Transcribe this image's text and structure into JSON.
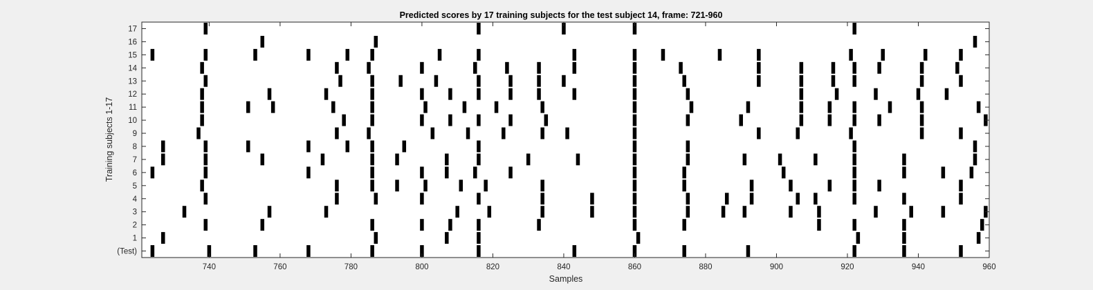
{
  "chart_data": {
    "type": "raster",
    "title": "Predicted scores by 17 training subjects for the test subject 14, frame: 721-960",
    "xlabel": "Samples",
    "ylabel": "Training subjects 1-17",
    "xlim": [
      721,
      960
    ],
    "x_ticks": [
      740,
      760,
      780,
      800,
      820,
      840,
      860,
      880,
      900,
      920,
      940,
      960
    ],
    "y_tick_labels": [
      "(Test)",
      "1",
      "2",
      "3",
      "4",
      "5",
      "6",
      "7",
      "8",
      "9",
      "10",
      "11",
      "12",
      "13",
      "14",
      "15",
      "16",
      "17"
    ],
    "grid": false,
    "legend": "none",
    "colors": {
      "background": "#f0f0f0",
      "axes": "#ffffff",
      "mark": "#000000"
    },
    "series": [
      {
        "name": "(Test)",
        "x": [
          724,
          740,
          753,
          768,
          786,
          800,
          816,
          843,
          860,
          874,
          892,
          922,
          936,
          952
        ]
      },
      {
        "name": "1",
        "x": [
          727,
          787,
          807,
          816,
          861,
          923,
          936,
          957
        ]
      },
      {
        "name": "2",
        "x": [
          739,
          755,
          786,
          800,
          808,
          816,
          833,
          860,
          874,
          912,
          922,
          936,
          958
        ]
      },
      {
        "name": "3",
        "x": [
          733,
          757,
          773,
          810,
          819,
          834,
          848,
          860,
          875,
          885,
          891,
          904,
          912,
          928,
          938,
          947,
          959
        ]
      },
      {
        "name": "4",
        "x": [
          739,
          776,
          787,
          800,
          816,
          834,
          848,
          860,
          875,
          886,
          893,
          906,
          911,
          922,
          936,
          952
        ]
      },
      {
        "name": "5",
        "x": [
          738,
          776,
          786,
          793,
          801,
          811,
          818,
          834,
          860,
          874,
          893,
          904,
          915,
          922,
          929,
          952
        ]
      },
      {
        "name": "6",
        "x": [
          724,
          739,
          768,
          786,
          800,
          807,
          815,
          825,
          860,
          874,
          902,
          922,
          936,
          947,
          955
        ]
      },
      {
        "name": "7",
        "x": [
          727,
          739,
          755,
          772,
          786,
          793,
          807,
          816,
          830,
          844,
          860,
          875,
          891,
          901,
          911,
          922,
          936,
          956
        ]
      },
      {
        "name": "8",
        "x": [
          727,
          739,
          751,
          768,
          779,
          786,
          795,
          816,
          860,
          875,
          922,
          956
        ]
      },
      {
        "name": "9",
        "x": [
          737,
          776,
          785,
          803,
          813,
          823,
          834,
          841,
          860,
          895,
          906,
          921,
          941,
          952
        ]
      },
      {
        "name": "10",
        "x": [
          738,
          778,
          786,
          800,
          808,
          816,
          825,
          835,
          860,
          875,
          890,
          907,
          915,
          922,
          929,
          941,
          959
        ]
      },
      {
        "name": "11",
        "x": [
          738,
          751,
          758,
          775,
          786,
          801,
          812,
          821,
          834,
          860,
          876,
          892,
          907,
          915,
          922,
          932,
          941,
          957
        ]
      },
      {
        "name": "12",
        "x": [
          738,
          757,
          773,
          786,
          800,
          808,
          816,
          825,
          833,
          843,
          860,
          875,
          907,
          917,
          928,
          940,
          948
        ]
      },
      {
        "name": "13",
        "x": [
          739,
          777,
          786,
          794,
          804,
          816,
          825,
          833,
          840,
          860,
          874,
          895,
          907,
          916,
          922,
          941,
          952
        ]
      },
      {
        "name": "14",
        "x": [
          738,
          776,
          785,
          800,
          815,
          824,
          833,
          843,
          860,
          873,
          895,
          907,
          916,
          922,
          929,
          941,
          951
        ]
      },
      {
        "name": "15",
        "x": [
          724,
          739,
          753,
          768,
          779,
          786,
          805,
          816,
          843,
          860,
          868,
          884,
          895,
          921,
          930,
          942,
          952
        ]
      },
      {
        "name": "16",
        "x": [
          755,
          787,
          956
        ]
      },
      {
        "name": "17",
        "x": [
          739,
          816,
          840,
          860,
          922
        ]
      }
    ]
  }
}
